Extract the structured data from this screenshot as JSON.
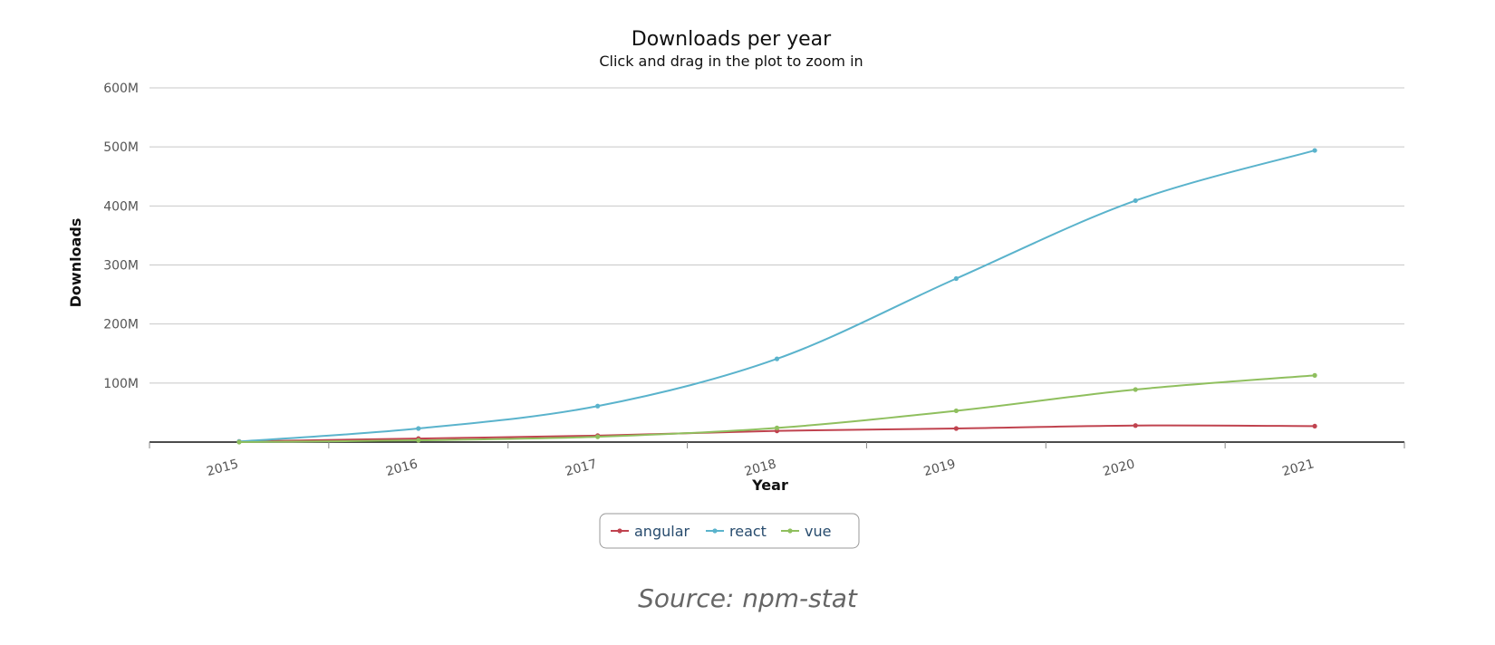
{
  "chart_data": {
    "type": "line",
    "title": "Downloads per year",
    "subtitle": "Click and drag in the plot to zoom in",
    "xlabel": "Year",
    "ylabel": "Downloads",
    "categories": [
      "2015",
      "2016",
      "2017",
      "2018",
      "2019",
      "2020",
      "2021"
    ],
    "ylim": [
      0,
      600000000
    ],
    "yticks": [
      {
        "value": 100000000,
        "label": "100M"
      },
      {
        "value": 200000000,
        "label": "200M"
      },
      {
        "value": 300000000,
        "label": "300M"
      },
      {
        "value": 400000000,
        "label": "400M"
      },
      {
        "value": 500000000,
        "label": "500M"
      },
      {
        "value": 600000000,
        "label": "600M"
      }
    ],
    "grid": true,
    "legend_position": "bottom-center",
    "series": [
      {
        "name": "angular",
        "color": "#c0434f",
        "values": [
          1000000,
          6000000,
          11000000,
          19000000,
          23000000,
          28000000,
          27000000
        ]
      },
      {
        "name": "react",
        "color": "#5ab3cc",
        "values": [
          1000000,
          23000000,
          61000000,
          141000000,
          277000000,
          409000000,
          494000000
        ]
      },
      {
        "name": "vue",
        "color": "#8fbf5e",
        "values": [
          0,
          3000000,
          9000000,
          24000000,
          53000000,
          89000000,
          113000000
        ]
      }
    ]
  },
  "caption": "Source: npm-stat"
}
